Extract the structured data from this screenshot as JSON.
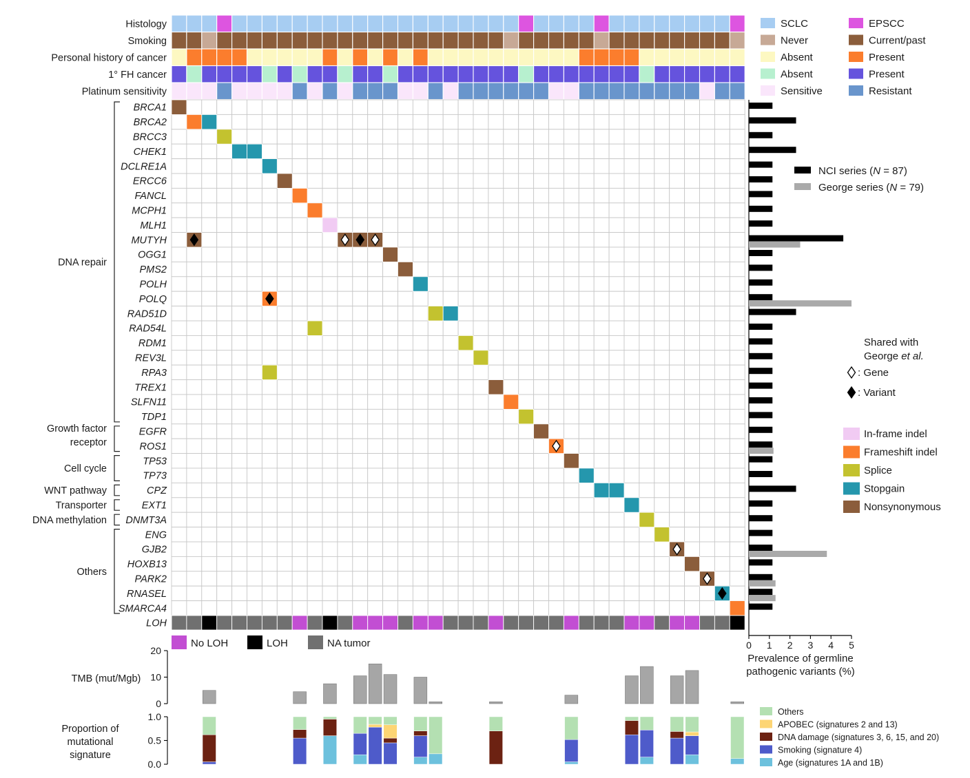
{
  "chart_data": {
    "type": "heatmap",
    "n_samples": 38,
    "tracks": [
      {
        "name": "Histology",
        "values": [
          0,
          0,
          0,
          1,
          0,
          0,
          0,
          0,
          0,
          0,
          0,
          0,
          0,
          0,
          0,
          0,
          0,
          0,
          0,
          0,
          0,
          0,
          0,
          1,
          0,
          0,
          0,
          0,
          1,
          0,
          0,
          0,
          0,
          0,
          0,
          0,
          0,
          1
        ]
      },
      {
        "name": "Smoking",
        "values": [
          1,
          1,
          0,
          1,
          1,
          1,
          1,
          1,
          1,
          1,
          1,
          1,
          1,
          1,
          1,
          1,
          1,
          1,
          1,
          1,
          1,
          1,
          0,
          1,
          1,
          1,
          1,
          1,
          0,
          1,
          1,
          1,
          1,
          1,
          1,
          1,
          1,
          0
        ]
      },
      {
        "name": "Personal history of cancer",
        "values": [
          0,
          1,
          1,
          1,
          1,
          0,
          0,
          0,
          0,
          0,
          1,
          0,
          1,
          0,
          1,
          0,
          1,
          0,
          0,
          0,
          0,
          0,
          0,
          0,
          0,
          0,
          0,
          1,
          1,
          1,
          1,
          0,
          0,
          0,
          0,
          0,
          0,
          0
        ]
      },
      {
        "name": "1° FH cancer",
        "values": [
          1,
          0,
          1,
          1,
          1,
          1,
          0,
          1,
          0,
          1,
          1,
          0,
          1,
          1,
          0,
          1,
          1,
          1,
          1,
          1,
          1,
          1,
          1,
          0,
          1,
          1,
          1,
          1,
          1,
          1,
          1,
          0,
          1,
          1,
          1,
          1,
          1,
          1
        ]
      },
      {
        "name": "Platinum sensitivity",
        "values": [
          0,
          0,
          0,
          1,
          0,
          0,
          0,
          0,
          1,
          0,
          1,
          0,
          1,
          1,
          1,
          0,
          0,
          1,
          0,
          1,
          1,
          1,
          1,
          1,
          1,
          0,
          0,
          1,
          1,
          1,
          1,
          1,
          1,
          1,
          1,
          0,
          1,
          1
        ]
      }
    ],
    "track_legend": [
      {
        "track": "Histology",
        "items": [
          {
            "label": "SCLC",
            "color": "#a7cdf2"
          },
          {
            "label": "EPSCC",
            "color": "#dd55e0"
          }
        ]
      },
      {
        "track": "Smoking",
        "items": [
          {
            "label": "Never",
            "color": "#c7a996"
          },
          {
            "label": "Current/past",
            "color": "#8b5d3b"
          }
        ]
      },
      {
        "track": "Personal history of cancer",
        "items": [
          {
            "label": "Absent",
            "color": "#fdf8c2"
          },
          {
            "label": "Present",
            "color": "#fb7d2d"
          }
        ]
      },
      {
        "track": "1° FH cancer",
        "items": [
          {
            "label": "Absent",
            "color": "#b7f0cf"
          },
          {
            "label": "Present",
            "color": "#6553dd"
          }
        ]
      },
      {
        "track": "Platinum sensitivity",
        "items": [
          {
            "label": "Sensitive",
            "color": "#fae6fb"
          },
          {
            "label": "Resistant",
            "color": "#6995cc"
          }
        ]
      }
    ],
    "genes": [
      "BRCA1",
      "BRCA2",
      "BRCC3",
      "CHEK1",
      "DCLRE1A",
      "ERCC6",
      "FANCL",
      "MCPH1",
      "MLH1",
      "MUTYH",
      "OGG1",
      "PMS2",
      "POLH",
      "POLQ",
      "RAD51D",
      "RAD54L",
      "RDM1",
      "REV3L",
      "RPA3",
      "TREX1",
      "SLFN11",
      "TDP1",
      "EGFR",
      "ROS1",
      "TP53",
      "TP73",
      "CPZ",
      "EXT1",
      "DNMT3A",
      "ENG",
      "GJB2",
      "HOXB13",
      "PARK2",
      "RNASEL",
      "SMARCA4"
    ],
    "gene_groups": [
      {
        "label": "DNA repair",
        "from": "BRCA1",
        "to": "TDP1"
      },
      {
        "label": "Growth factor receptor",
        "lines": [
          "Growth factor",
          "receptor"
        ],
        "from": "EGFR",
        "to": "ROS1"
      },
      {
        "label": "Cell cycle",
        "from": "TP53",
        "to": "TP73"
      },
      {
        "label": "WNT pathway",
        "from": "CPZ",
        "to": "CPZ"
      },
      {
        "label": "Transporter",
        "from": "EXT1",
        "to": "EXT1"
      },
      {
        "label": "DNA methylation",
        "from": "DNMT3A",
        "to": "DNMT3A"
      },
      {
        "label": "Others",
        "from": "ENG",
        "to": "SMARCA4"
      }
    ],
    "mutations": [
      {
        "gene": 0,
        "sample": 0,
        "type": 4
      },
      {
        "gene": 1,
        "sample": 1,
        "type": 1
      },
      {
        "gene": 1,
        "sample": 2,
        "type": 3
      },
      {
        "gene": 2,
        "sample": 3,
        "type": 2
      },
      {
        "gene": 3,
        "sample": 4,
        "type": 3
      },
      {
        "gene": 3,
        "sample": 5,
        "type": 3
      },
      {
        "gene": 4,
        "sample": 6,
        "type": 3
      },
      {
        "gene": 5,
        "sample": 7,
        "type": 4
      },
      {
        "gene": 6,
        "sample": 8,
        "type": 1
      },
      {
        "gene": 7,
        "sample": 9,
        "type": 1
      },
      {
        "gene": 8,
        "sample": 10,
        "type": 0
      },
      {
        "gene": 9,
        "sample": 1,
        "type": 4,
        "shared": "variant"
      },
      {
        "gene": 9,
        "sample": 11,
        "type": 4,
        "shared": "gene"
      },
      {
        "gene": 9,
        "sample": 12,
        "type": 4,
        "shared": "variant"
      },
      {
        "gene": 9,
        "sample": 13,
        "type": 4,
        "shared": "gene"
      },
      {
        "gene": 10,
        "sample": 14,
        "type": 4
      },
      {
        "gene": 11,
        "sample": 15,
        "type": 4
      },
      {
        "gene": 12,
        "sample": 16,
        "type": 3
      },
      {
        "gene": 13,
        "sample": 6,
        "type": 1,
        "shared": "variant"
      },
      {
        "gene": 14,
        "sample": 17,
        "type": 2
      },
      {
        "gene": 14,
        "sample": 18,
        "type": 3
      },
      {
        "gene": 15,
        "sample": 9,
        "type": 2
      },
      {
        "gene": 16,
        "sample": 19,
        "type": 2
      },
      {
        "gene": 17,
        "sample": 20,
        "type": 2
      },
      {
        "gene": 18,
        "sample": 6,
        "type": 2
      },
      {
        "gene": 19,
        "sample": 21,
        "type": 4
      },
      {
        "gene": 20,
        "sample": 22,
        "type": 1
      },
      {
        "gene": 21,
        "sample": 23,
        "type": 2
      },
      {
        "gene": 22,
        "sample": 24,
        "type": 4
      },
      {
        "gene": 23,
        "sample": 25,
        "type": 1,
        "shared": "gene"
      },
      {
        "gene": 24,
        "sample": 26,
        "type": 4
      },
      {
        "gene": 25,
        "sample": 27,
        "type": 3
      },
      {
        "gene": 26,
        "sample": 28,
        "type": 3
      },
      {
        "gene": 26,
        "sample": 29,
        "type": 3
      },
      {
        "gene": 27,
        "sample": 30,
        "type": 3
      },
      {
        "gene": 28,
        "sample": 31,
        "type": 2
      },
      {
        "gene": 29,
        "sample": 32,
        "type": 2
      },
      {
        "gene": 30,
        "sample": 33,
        "type": 4,
        "shared": "gene"
      },
      {
        "gene": 31,
        "sample": 34,
        "type": 4
      },
      {
        "gene": 32,
        "sample": 35,
        "type": 4,
        "shared": "gene"
      },
      {
        "gene": 33,
        "sample": 36,
        "type": 3,
        "shared": "variant"
      },
      {
        "gene": 34,
        "sample": 37,
        "type": 1
      }
    ],
    "mutation_legend": [
      {
        "label": "In-frame indel",
        "color": "#f1cbf3"
      },
      {
        "label": "Frameshift indel",
        "color": "#fb7d2d"
      },
      {
        "label": "Splice",
        "color": "#c3c22f"
      },
      {
        "label": "Stopgain",
        "color": "#2597ad"
      },
      {
        "label": "Nonsynonymous",
        "color": "#8b5d3b"
      }
    ],
    "shared_legend": {
      "lines": [
        "Shared with",
        "George"
      ],
      "italic": "et al.",
      "gene": ": Gene",
      "variant": ": Variant"
    },
    "loh": {
      "label": "LOH",
      "values": [
        2,
        2,
        1,
        2,
        2,
        2,
        2,
        2,
        0,
        2,
        1,
        2,
        0,
        0,
        0,
        2,
        0,
        0,
        2,
        2,
        2,
        0,
        2,
        2,
        2,
        2,
        0,
        2,
        2,
        2,
        0,
        0,
        2,
        0,
        0,
        2,
        2,
        1
      ],
      "legend": [
        {
          "label": "No LOH",
          "color": "#c24ed3"
        },
        {
          "label": "LOH",
          "color": "#000000"
        },
        {
          "label": "NA tumor",
          "color": "#707070"
        }
      ]
    },
    "prevalence": {
      "xlabel_lines": [
        "Prevalence of germline",
        "pathogenic variants (%)"
      ],
      "xticks": [
        0,
        1,
        2,
        3,
        4,
        5
      ],
      "xlim": [
        0,
        5
      ],
      "series": [
        {
          "name": "NCI series",
          "n": "87",
          "color": "#000000",
          "values": [
            1.15,
            2.3,
            1.15,
            2.3,
            1.15,
            1.15,
            1.15,
            1.15,
            1.15,
            4.6,
            1.15,
            1.15,
            1.15,
            1.15,
            2.3,
            1.15,
            1.15,
            1.15,
            1.15,
            1.15,
            1.15,
            1.15,
            1.15,
            1.15,
            1.15,
            1.15,
            2.3,
            1.15,
            1.15,
            1.15,
            1.15,
            1.15,
            1.15,
            1.15,
            1.15
          ]
        },
        {
          "name": "George series",
          "n": "79",
          "color": "#aaaaaa",
          "values": [
            0,
            0,
            0,
            0,
            0,
            0,
            0,
            0,
            0,
            2.5,
            0,
            0,
            0,
            5.0,
            0,
            0,
            0,
            0,
            0,
            0,
            0,
            0,
            0,
            1.2,
            0,
            0,
            0,
            0,
            0,
            0,
            3.8,
            0,
            1.3,
            1.3,
            0
          ]
        }
      ]
    },
    "tmb": {
      "ylabel": "TMB (mut/Mgb)",
      "yticks": [
        0,
        10,
        20
      ],
      "ylim": [
        0,
        20
      ],
      "values": [
        null,
        null,
        5,
        null,
        null,
        null,
        null,
        null,
        4.5,
        null,
        7.5,
        null,
        10.5,
        15,
        11,
        null,
        10,
        0.7,
        null,
        null,
        null,
        0.7,
        null,
        null,
        null,
        null,
        3.2,
        null,
        null,
        null,
        10.5,
        14,
        null,
        10.5,
        12.5,
        null,
        null,
        0.7
      ]
    },
    "signatures": {
      "ylabel_lines": [
        "Proportion of",
        "mutational",
        "signature"
      ],
      "yticks": [
        0.0,
        0.5,
        1.0
      ],
      "ylim": [
        0,
        1
      ],
      "components": [
        {
          "label": "Age (signatures 1A and 1B)",
          "color": "#6dc1dd"
        },
        {
          "label": "Smoking (signature 4)",
          "color": "#4e5bca"
        },
        {
          "label": "DNA damage (signatures 3, 6, 15, and 20)",
          "color": "#6c2212"
        },
        {
          "label": "APOBEC (signatures 2 and 13)",
          "color": "#fdd574"
        },
        {
          "label": "Others",
          "color": "#b4e0b2"
        }
      ],
      "values": [
        null,
        null,
        [
          0,
          0.05,
          0.57,
          0,
          0.38
        ],
        null,
        null,
        null,
        null,
        null,
        [
          0,
          0.55,
          0.18,
          0,
          0.27
        ],
        null,
        [
          0.6,
          0,
          0.35,
          0,
          0.05
        ],
        null,
        [
          0.2,
          0.45,
          0,
          0,
          0.35
        ],
        [
          0,
          0.78,
          0,
          0.06,
          0.16
        ],
        [
          0,
          0.45,
          0.1,
          0.28,
          0.17
        ],
        null,
        [
          0.15,
          0.45,
          0.1,
          0,
          0.3
        ],
        [
          0.22,
          0,
          0,
          0,
          0.78
        ],
        null,
        null,
        null,
        [
          0,
          0,
          0.7,
          0,
          0.3
        ],
        null,
        null,
        null,
        null,
        [
          0.05,
          0.47,
          0,
          0,
          0.48
        ],
        null,
        null,
        null,
        [
          0,
          0.62,
          0.3,
          0,
          0.08
        ],
        [
          0.15,
          0.57,
          0,
          0,
          0.28
        ],
        null,
        [
          0,
          0.55,
          0.14,
          0,
          0.31
        ],
        [
          0.2,
          0.4,
          0,
          0.08,
          0.32
        ],
        null,
        null,
        [
          0.12,
          0,
          0,
          0,
          0.88
        ]
      ]
    }
  }
}
